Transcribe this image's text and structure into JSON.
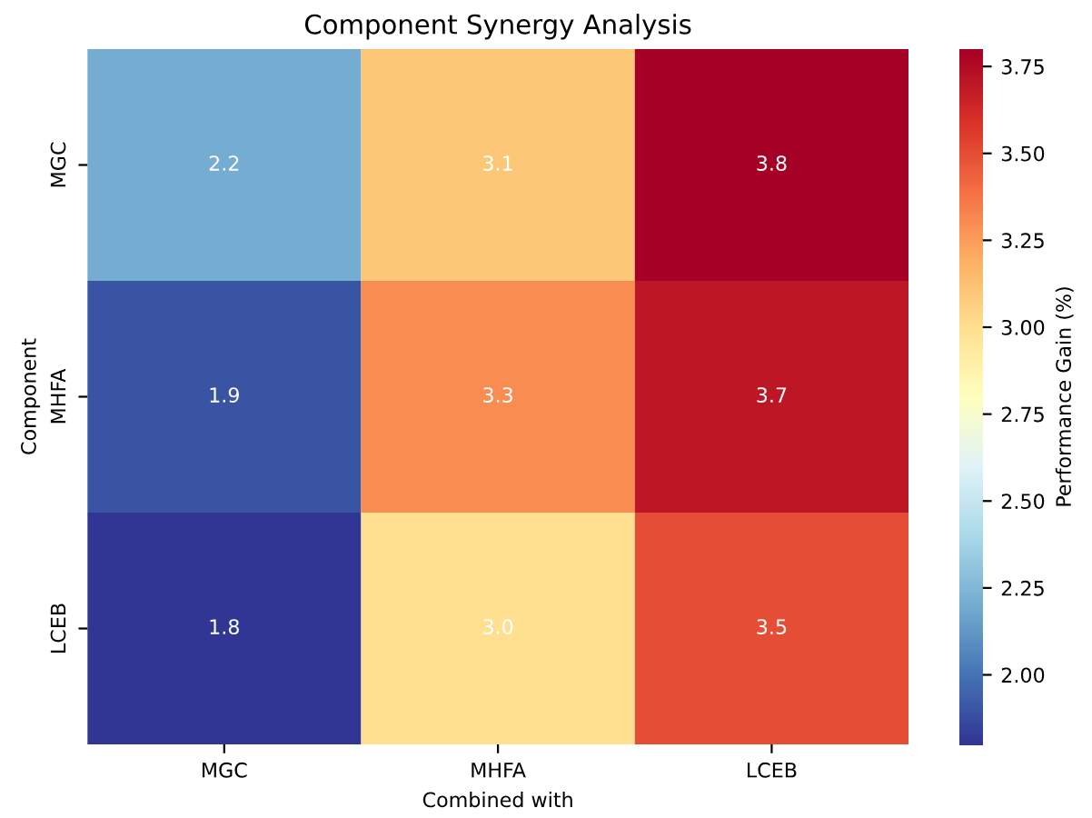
{
  "chart_data": {
    "type": "heatmap",
    "title": "Component Synergy Analysis",
    "xlabel": "Combined with",
    "ylabel": "Component",
    "clabel": "Performance Gain (%)",
    "categories": [
      "MGC",
      "MHFA",
      "LCEB"
    ],
    "y_categories": [
      "MGC",
      "MHFA",
      "LCEB"
    ],
    "cells": [
      [
        2.2,
        3.1,
        3.8
      ],
      [
        1.9,
        3.3,
        3.7
      ],
      [
        1.8,
        3.0,
        3.5
      ]
    ],
    "cell_labels": [
      [
        "2.2",
        "3.1",
        "3.8"
      ],
      [
        "1.9",
        "3.3",
        "3.7"
      ],
      [
        "1.8",
        "3.0",
        "3.5"
      ]
    ],
    "clim": [
      1.8,
      3.8
    ],
    "cticks": [
      {
        "value": 2.0,
        "label": "2.00"
      },
      {
        "value": 2.25,
        "label": "2.25"
      },
      {
        "value": 2.5,
        "label": "2.50"
      },
      {
        "value": 2.75,
        "label": "2.75"
      },
      {
        "value": 3.0,
        "label": "3.00"
      },
      {
        "value": 3.25,
        "label": "3.25"
      },
      {
        "value": 3.5,
        "label": "3.50"
      },
      {
        "value": 3.75,
        "label": "3.75"
      }
    ],
    "data_labels": true
  }
}
